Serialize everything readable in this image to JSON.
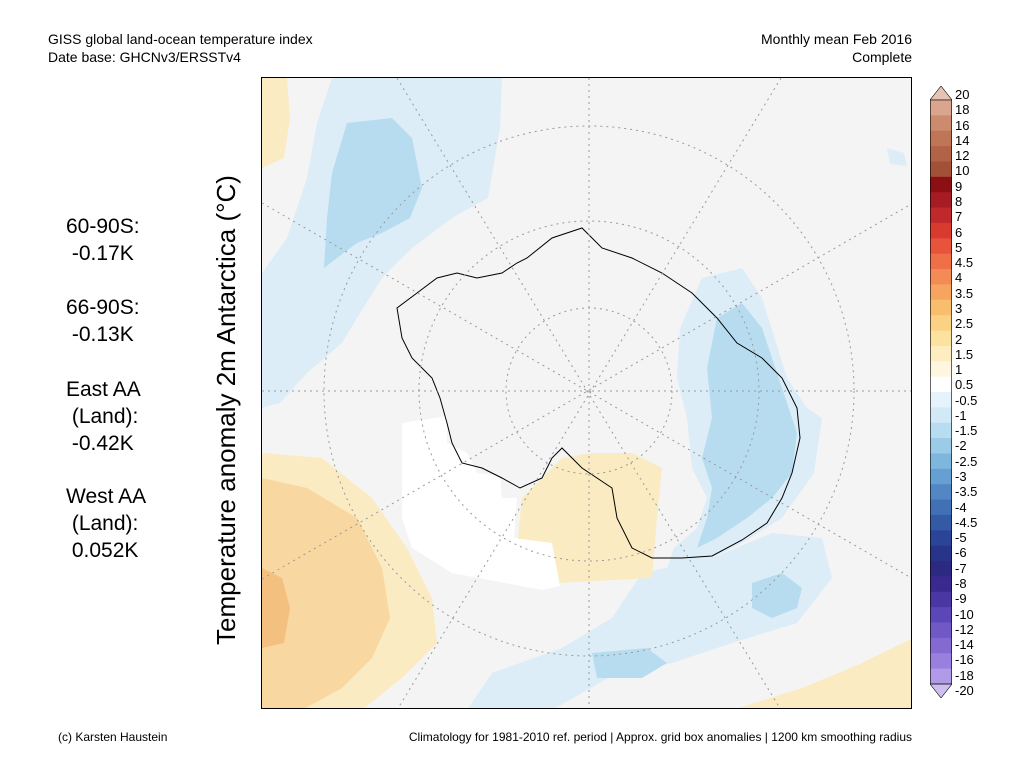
{
  "header": {
    "title_line1": "GISS global land-ocean temperature index",
    "title_line2": "Date base: GHCNv3/ERSSTv4",
    "period_line1": "Monthly mean Feb 2016",
    "period_line2": "Complete"
  },
  "y_axis_label": "Temperature anomaly 2m Antarctica (°C)",
  "stats": [
    {
      "lines": [
        "60-90S:",
        " -0.17K"
      ]
    },
    {
      "lines": [
        "66-90S:",
        " -0.13K"
      ]
    },
    {
      "lines": [
        "East AA",
        " (Land):",
        " -0.42K"
      ]
    },
    {
      "lines": [
        "West AA",
        " (Land):",
        " 0.052K"
      ]
    }
  ],
  "colorbar": {
    "labels": [
      "20",
      "18",
      "16",
      "14",
      "12",
      "10",
      "9",
      "8",
      "7",
      "6",
      "5",
      "4.5",
      "4",
      "3.5",
      "3",
      "2.5",
      "2",
      "1.5",
      "1",
      "0.5",
      "-0.5",
      "-1",
      "-1.5",
      "-2",
      "-2.5",
      "-3",
      "-3.5",
      "-4",
      "-4.5",
      "-5",
      "-6",
      "-7",
      "-8",
      "-9",
      "-10",
      "-12",
      "-14",
      "-16",
      "-18",
      "-20"
    ],
    "colors": [
      "#e6c3b4",
      "#d9a58e",
      "#cc8b6e",
      "#bf7656",
      "#b26246",
      "#a35038",
      "#8c0f14",
      "#a61c22",
      "#c0292b",
      "#d93a30",
      "#e8533b",
      "#ef6f48",
      "#f48a55",
      "#f7a461",
      "#f9bd6e",
      "#fbd184",
      "#fce19f",
      "#fdedc0",
      "#fef6de",
      "#ffffff",
      "#e6f3fc",
      "#d2eaf8",
      "#b8ddf1",
      "#9ccbe7",
      "#7fb6dd",
      "#669fd1",
      "#5287c3",
      "#4170b5",
      "#345aa6",
      "#2a4598",
      "#27348a",
      "#2b2a80",
      "#3a2a8f",
      "#4b37a3",
      "#5c47b8",
      "#7058c7",
      "#8569d3",
      "#9a80de",
      "#b19be8",
      "#cdbff2"
    ]
  },
  "footer": {
    "left": "(c) Karsten Haustein",
    "right": "Climatology for 1981-2010 ref. period | Approx. grid box anomalies | 1200 km smoothing radius"
  },
  "map_colors": {
    "background": "#f4f4f4",
    "light_blue": "#dcedf8",
    "mid_blue": "#b7dcef",
    "cream": "#faebc3",
    "light_orange": "#f8d7a0",
    "orange": "#f4c080",
    "white": "#ffffff"
  }
}
